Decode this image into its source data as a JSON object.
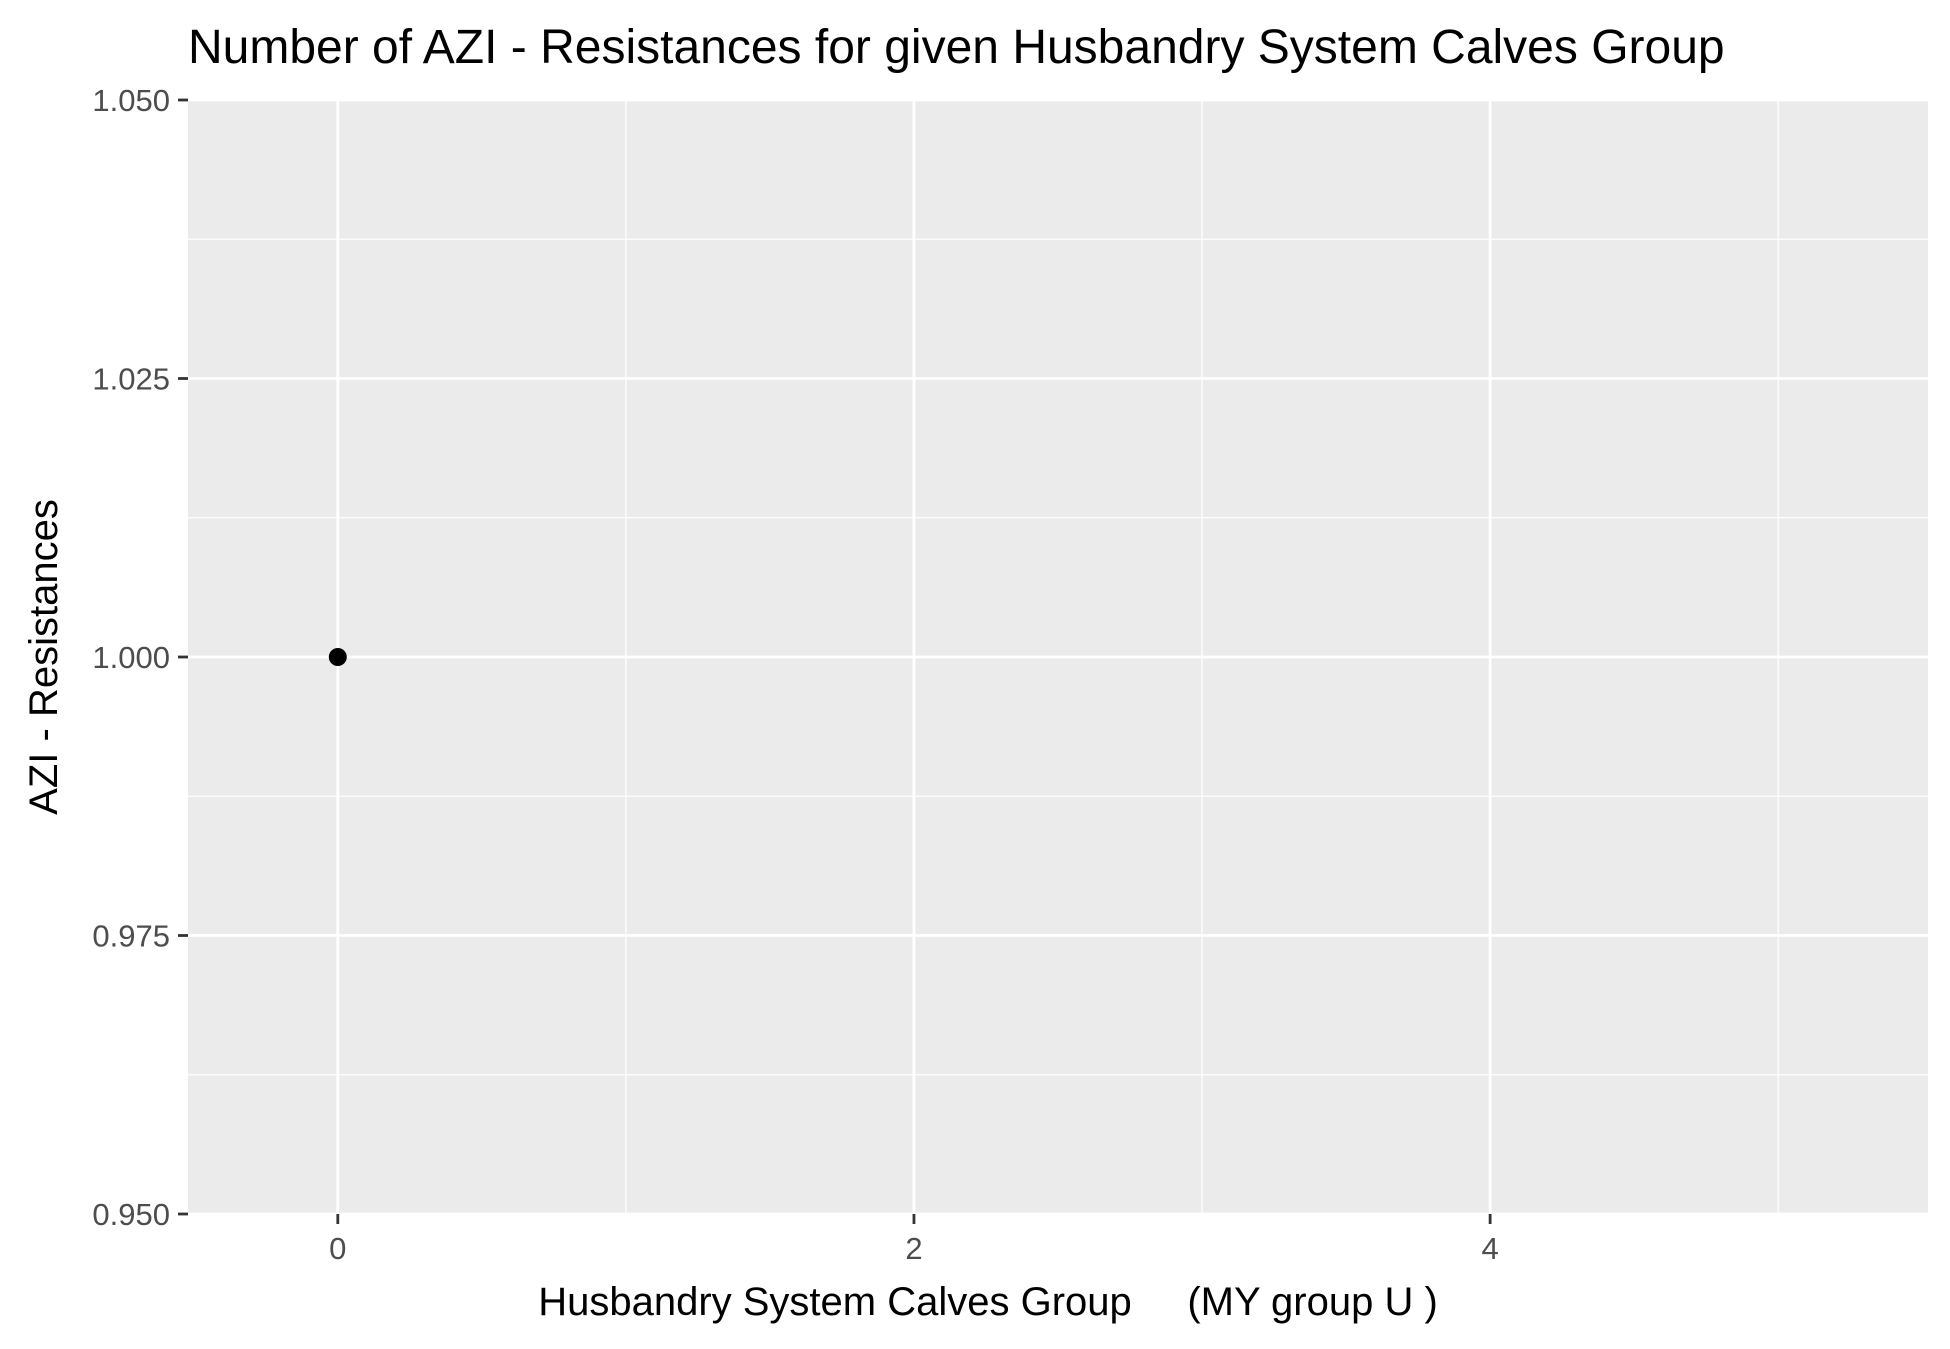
{
  "chart_data": {
    "type": "scatter",
    "title": "Number of AZI - Resistances for given Husbandry System Calves Group",
    "xlabel": "Husbandry System Calves Group     (MY group U )",
    "ylabel": "AZI - Resistances",
    "xlim": [
      -0.52,
      5.52
    ],
    "ylim": [
      0.95,
      1.05
    ],
    "x_ticks": [
      0,
      2,
      4
    ],
    "x_tick_labels": [
      "0",
      "2",
      "4"
    ],
    "x_minor_ticks": [
      1,
      3,
      5
    ],
    "y_ticks": [
      0.95,
      0.975,
      1.0,
      1.025,
      1.05
    ],
    "y_tick_labels": [
      "0.950",
      "0.975",
      "1.000",
      "1.025",
      "1.050"
    ],
    "y_minor_ticks": [
      0.9625,
      0.9875,
      1.0125,
      1.0375
    ],
    "grid": true,
    "legend": "none",
    "series": [
      {
        "points": [
          {
            "x": 0,
            "y": 1.0
          }
        ],
        "color": "#000000"
      }
    ],
    "colors": {
      "panel_background": "#ebebeb",
      "grid_major": "#ffffff",
      "grid_minor": "#ffffff",
      "tick_mark": "#333333",
      "tick_label": "#4d4d4d"
    }
  }
}
